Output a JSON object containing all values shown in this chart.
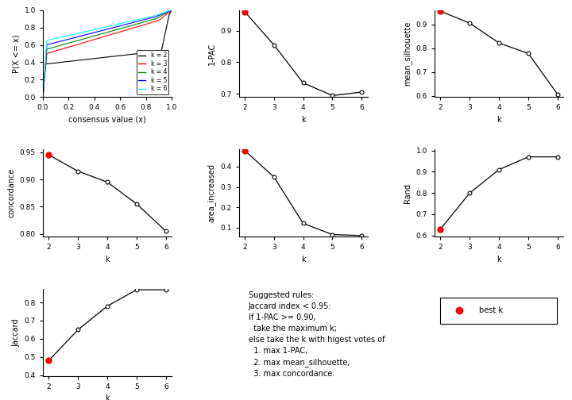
{
  "k_values": [
    2,
    3,
    4,
    5,
    6
  ],
  "one_minus_pac": [
    0.96,
    0.855,
    0.735,
    0.695,
    0.706
  ],
  "mean_silhouette": [
    0.955,
    0.905,
    0.822,
    0.778,
    0.607
  ],
  "concordance": [
    0.945,
    0.915,
    0.895,
    0.855,
    0.805
  ],
  "area_increased": [
    0.48,
    0.35,
    0.12,
    0.065,
    0.06
  ],
  "rand": [
    0.63,
    0.8,
    0.91,
    0.97,
    0.97
  ],
  "jaccard": [
    0.48,
    0.65,
    0.78,
    0.87,
    0.87
  ],
  "best_k_pac": 0,
  "best_k_sil": 0,
  "best_k_conc": 0,
  "best_k_area": 0,
  "worst_k_rand": 0,
  "worst_k_jacc": 0,
  "ecdf_colors": [
    "black",
    "red",
    "green",
    "blue",
    "cyan"
  ],
  "ecdf_k_labels": [
    "k = 2",
    "k = 3",
    "k = 4",
    "k = 5",
    "k = 6"
  ],
  "annotation_text": "Suggested rules:\nJaccard index < 0.95:\nIf 1-PAC >= 0.90,\n  take the maximum k;\nelse take the k with higest votes of\n  1. max 1-PAC,\n  2. max mean_silhouette,\n  3. max concordance.",
  "pac_yticks": [
    0.7,
    0.8,
    0.9
  ],
  "sil_yticks": [
    0.6,
    0.7,
    0.8,
    0.9
  ],
  "conc_yticks": [
    0.8,
    0.85,
    0.9,
    0.95
  ],
  "area_yticks": [
    0.1,
    0.2,
    0.3,
    0.4
  ],
  "rand_yticks": [
    0.6,
    0.7,
    0.8,
    0.9,
    1.0
  ],
  "jacc_yticks": [
    0.4,
    0.5,
    0.6,
    0.7,
    0.8
  ]
}
